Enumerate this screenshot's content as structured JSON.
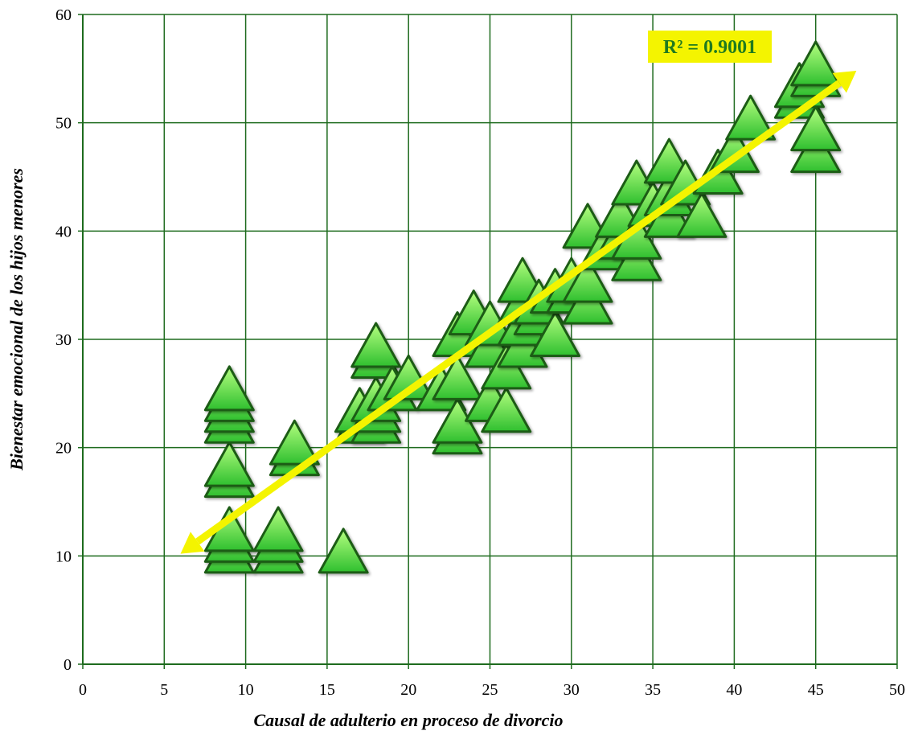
{
  "chart_data": {
    "type": "scatter",
    "title": "",
    "xlabel": "Causal de adulterio en proceso de divorcio",
    "ylabel": "Bienestar emocional de los hijos menores",
    "xlim": [
      0,
      50
    ],
    "ylim": [
      0,
      60
    ],
    "x_ticks": [
      0,
      5,
      10,
      15,
      20,
      25,
      30,
      35,
      40,
      45,
      50
    ],
    "y_ticks": [
      0,
      10,
      20,
      30,
      40,
      50,
      60
    ],
    "grid": true,
    "legend": "none",
    "annotation": "R² = 0.9001",
    "marker": "triangle",
    "colors": {
      "grid": "#1e6b1e",
      "marker_fill_top": "#b6ff80",
      "marker_fill_bottom": "#2fbf2f",
      "marker_edge": "#1d5c12",
      "trendline": "#f4f400",
      "annotation_bg": "#f4f400",
      "annotation_text": "#1f7a1f"
    },
    "trendline": {
      "x": [
        6,
        47.5
      ],
      "y": [
        10.2,
        54.8
      ]
    },
    "points": [
      {
        "x": 9,
        "y": 10
      },
      {
        "x": 9,
        "y": 11
      },
      {
        "x": 9,
        "y": 12
      },
      {
        "x": 12,
        "y": 10
      },
      {
        "x": 12,
        "y": 11
      },
      {
        "x": 12,
        "y": 12
      },
      {
        "x": 16,
        "y": 10
      },
      {
        "x": 9,
        "y": 17
      },
      {
        "x": 9,
        "y": 18
      },
      {
        "x": 9,
        "y": 22
      },
      {
        "x": 9,
        "y": 23
      },
      {
        "x": 9,
        "y": 24
      },
      {
        "x": 9,
        "y": 25
      },
      {
        "x": 13,
        "y": 19
      },
      {
        "x": 13,
        "y": 20
      },
      {
        "x": 17,
        "y": 22
      },
      {
        "x": 17,
        "y": 23
      },
      {
        "x": 18,
        "y": 22
      },
      {
        "x": 18,
        "y": 23
      },
      {
        "x": 18,
        "y": 24
      },
      {
        "x": 18,
        "y": 28
      },
      {
        "x": 18,
        "y": 29
      },
      {
        "x": 19,
        "y": 25
      },
      {
        "x": 20,
        "y": 26
      },
      {
        "x": 22,
        "y": 25
      },
      {
        "x": 23,
        "y": 21
      },
      {
        "x": 23,
        "y": 22
      },
      {
        "x": 23,
        "y": 26
      },
      {
        "x": 23,
        "y": 30
      },
      {
        "x": 24,
        "y": 32
      },
      {
        "x": 25,
        "y": 24
      },
      {
        "x": 25,
        "y": 29
      },
      {
        "x": 25,
        "y": 31
      },
      {
        "x": 26,
        "y": 23
      },
      {
        "x": 26,
        "y": 27
      },
      {
        "x": 27,
        "y": 29
      },
      {
        "x": 27,
        "y": 31
      },
      {
        "x": 27,
        "y": 33
      },
      {
        "x": 27,
        "y": 35
      },
      {
        "x": 28,
        "y": 32
      },
      {
        "x": 28,
        "y": 33
      },
      {
        "x": 29,
        "y": 30
      },
      {
        "x": 29,
        "y": 34
      },
      {
        "x": 30,
        "y": 34
      },
      {
        "x": 30,
        "y": 35
      },
      {
        "x": 31,
        "y": 33
      },
      {
        "x": 31,
        "y": 35
      },
      {
        "x": 31,
        "y": 40
      },
      {
        "x": 32,
        "y": 38
      },
      {
        "x": 33,
        "y": 39
      },
      {
        "x": 33,
        "y": 41
      },
      {
        "x": 34,
        "y": 37
      },
      {
        "x": 34,
        "y": 39
      },
      {
        "x": 34,
        "y": 44
      },
      {
        "x": 35,
        "y": 42
      },
      {
        "x": 36,
        "y": 41
      },
      {
        "x": 36,
        "y": 43
      },
      {
        "x": 36,
        "y": 46
      },
      {
        "x": 37,
        "y": 44
      },
      {
        "x": 38,
        "y": 41
      },
      {
        "x": 39,
        "y": 45
      },
      {
        "x": 40,
        "y": 47
      },
      {
        "x": 41,
        "y": 50
      },
      {
        "x": 44,
        "y": 52
      },
      {
        "x": 44,
        "y": 53
      },
      {
        "x": 45,
        "y": 47
      },
      {
        "x": 45,
        "y": 49
      },
      {
        "x": 45,
        "y": 54
      },
      {
        "x": 45,
        "y": 55
      }
    ]
  }
}
